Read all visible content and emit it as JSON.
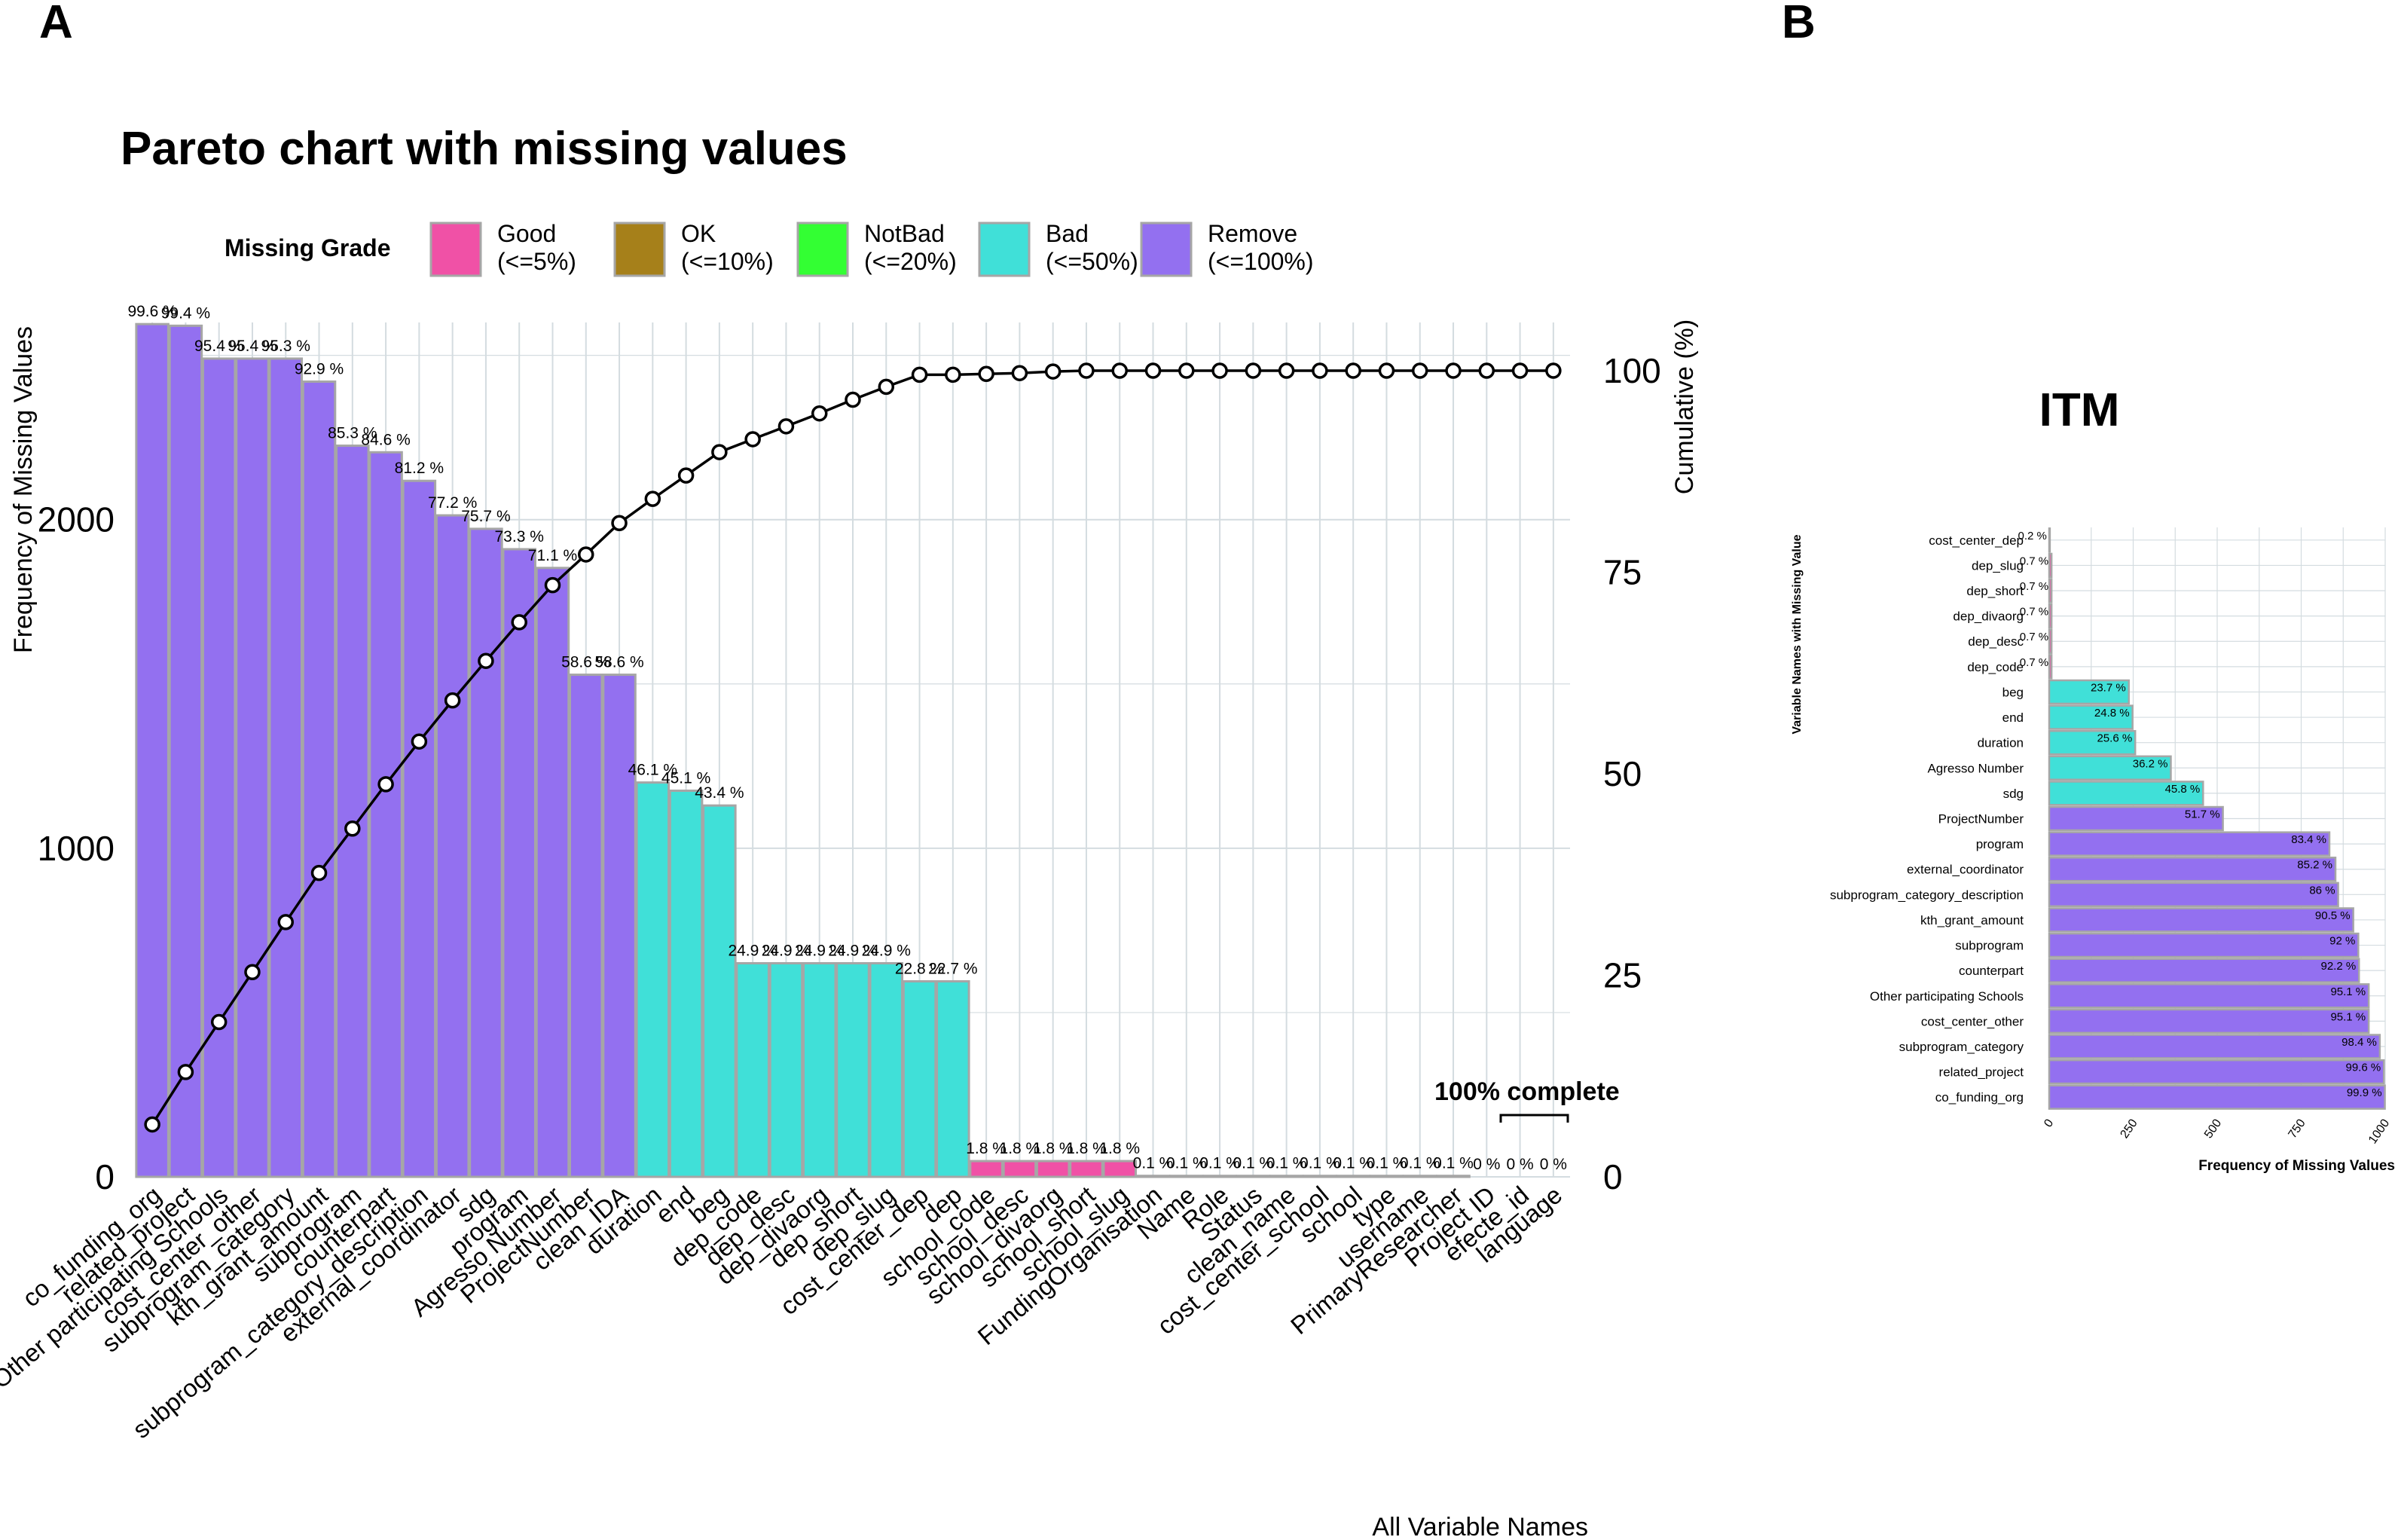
{
  "panel_labels": [
    "A",
    "B"
  ],
  "colors": {
    "Good": "#F051A6",
    "OK": "#A6801A",
    "NotBad": "#33FF33",
    "Bad": "#40E0D8",
    "Remove": "#9370F0",
    "bar_border": "#A6A6A6",
    "grid": "#D4DCE0",
    "line": "#000000"
  },
  "chart_data": [
    {
      "type": "bar",
      "title": "Pareto chart with missing values",
      "legend": {
        "title": "Missing Grade",
        "placement": "top",
        "items": [
          {
            "grade": "Good",
            "range": "(<=5%)"
          },
          {
            "grade": "OK",
            "range": "(<=10%)"
          },
          {
            "grade": "NotBad",
            "range": "(<=20%)"
          },
          {
            "grade": "Bad",
            "range": "(<=50%)"
          },
          {
            "grade": "Remove",
            "range": "(<=100%)"
          }
        ]
      },
      "xlabel": "All Variable Names",
      "ylabel": "Frequency of Missing Values",
      "y2label": "Cumulative (%)",
      "ylim": [
        0,
        2600
      ],
      "yticks": [
        0,
        1000,
        2000
      ],
      "y2ticks": [
        0,
        25,
        50,
        75,
        100
      ],
      "grid": true,
      "annotation": "100% complete",
      "categories": [
        "co_funding_org",
        "related_project",
        "Other participating Schools",
        "cost_center_other",
        "subprogram_category",
        "kth_grant_amount",
        "subprogram",
        "counterpart",
        "subprogram_category_description",
        "external_coordinator",
        "sdg",
        "program",
        "Agresso Number",
        "ProjectNumber",
        "clean_IDA",
        "duration",
        "end",
        "beg",
        "dep_code",
        "dep_desc",
        "dep_divaorg",
        "dep_short",
        "dep_slug",
        "cost_center_dep",
        "dep",
        "school_code",
        "school_desc",
        "school_divaorg",
        "school_short",
        "school_slug",
        "FundingOrganisation",
        "Name",
        "Role",
        "Status",
        "clean_name",
        "cost_center_school",
        "school",
        "type",
        "username",
        "PrimaryResearcher",
        "Project ID",
        "efecte_id",
        "language"
      ],
      "values": [
        2595,
        2590,
        2490,
        2490,
        2490,
        2420,
        2225,
        2205,
        2118,
        2013,
        1972,
        1910,
        1853,
        1528,
        1528,
        1200,
        1175,
        1130,
        650,
        650,
        650,
        650,
        650,
        595,
        595,
        48,
        48,
        48,
        48,
        48,
        3,
        3,
        3,
        3,
        3,
        3,
        3,
        3,
        3,
        3,
        0,
        0,
        0
      ],
      "labels": [
        "99.6 %",
        "99.4 %",
        "95.4 %",
        "95.4 %",
        "95.3 %",
        "92.9 %",
        "85.3 %",
        "84.6 %",
        "81.2 %",
        "77.2 %",
        "75.7 %",
        "73.3 %",
        "71.1 %",
        "58.6 %",
        "58.6 %",
        "46.1 %",
        "45.1 %",
        "43.4 %",
        "24.9 %",
        "24.9 %",
        "24.9 %",
        "24.9 %",
        "24.9 %",
        "22.8 %",
        "22.7 %",
        "1.8 %",
        "1.8 %",
        "1.8 %",
        "1.8 %",
        "1.8 %",
        "0.1 %",
        "0.1 %",
        "0.1 %",
        "0.1 %",
        "0.1 %",
        "0.1 %",
        "0.1 %",
        "0.1 %",
        "0.1 %",
        "0.1 %",
        "0 %",
        "0 %",
        "0 %"
      ],
      "grades": [
        "Remove",
        "Remove",
        "Remove",
        "Remove",
        "Remove",
        "Remove",
        "Remove",
        "Remove",
        "Remove",
        "Remove",
        "Remove",
        "Remove",
        "Remove",
        "Remove",
        "Remove",
        "Bad",
        "Bad",
        "Bad",
        "Bad",
        "Bad",
        "Bad",
        "Bad",
        "Bad",
        "Bad",
        "Bad",
        "Good",
        "Good",
        "Good",
        "Good",
        "Good",
        "Good",
        "Good",
        "Good",
        "Good",
        "Good",
        "Good",
        "Good",
        "Good",
        "Good",
        "Good",
        "Good",
        "Good",
        "Good"
      ],
      "cumulative_pct": [
        6.5,
        13.0,
        19.2,
        25.4,
        31.6,
        37.7,
        43.2,
        48.7,
        54.0,
        59.1,
        64.0,
        68.8,
        73.4,
        77.2,
        81.1,
        84.1,
        87.0,
        89.9,
        91.5,
        93.1,
        94.7,
        96.4,
        98.0,
        99.5,
        99.5,
        99.6,
        99.7,
        99.9,
        100,
        100,
        100,
        100,
        100,
        100,
        100,
        100,
        100,
        100,
        100,
        100,
        100,
        100,
        100
      ]
    },
    {
      "type": "bar",
      "orientation": "horizontal",
      "title": "ITM",
      "xlabel": "Frequency of Missing Values",
      "ylabel": "Variable Names with Missing Value",
      "xlim": [
        0,
        1000
      ],
      "xticks": [
        0,
        250,
        500,
        750,
        1000
      ],
      "grid": true,
      "categories": [
        "cost_center_dep",
        "dep_slug",
        "dep_short",
        "dep_divaorg",
        "dep_desc",
        "dep_code",
        "beg",
        "end",
        "duration",
        "Agresso Number",
        "sdg",
        "ProjectNumber",
        "program",
        "external_coordinator",
        "subprogram_category_description",
        "kth_grant_amount",
        "subprogram",
        "counterpart",
        "Other participating Schools",
        "cost_center_other",
        "subprogram_category",
        "related_project",
        "co_funding_org"
      ],
      "values": [
        2,
        7,
        7,
        7,
        7,
        7,
        237,
        248,
        256,
        362,
        458,
        517,
        834,
        852,
        860,
        905,
        920,
        922,
        951,
        951,
        984,
        996,
        999
      ],
      "labels": [
        "0.2 %",
        "0.7 %",
        "0.7 %",
        "0.7 %",
        "0.7 %",
        "0.7 %",
        "23.7 %",
        "24.8 %",
        "25.6 %",
        "36.2 %",
        "45.8 %",
        "51.7 %",
        "83.4 %",
        "85.2 %",
        "86 %",
        "90.5 %",
        "92 %",
        "92.2 %",
        "95.1 %",
        "95.1 %",
        "98.4 %",
        "99.6 %",
        "99.9 %"
      ],
      "grades": [
        "Good",
        "Good",
        "Good",
        "Good",
        "Good",
        "Good",
        "Bad",
        "Bad",
        "Bad",
        "Bad",
        "Bad",
        "Remove",
        "Remove",
        "Remove",
        "Remove",
        "Remove",
        "Remove",
        "Remove",
        "Remove",
        "Remove",
        "Remove",
        "Remove",
        "Remove"
      ]
    }
  ]
}
